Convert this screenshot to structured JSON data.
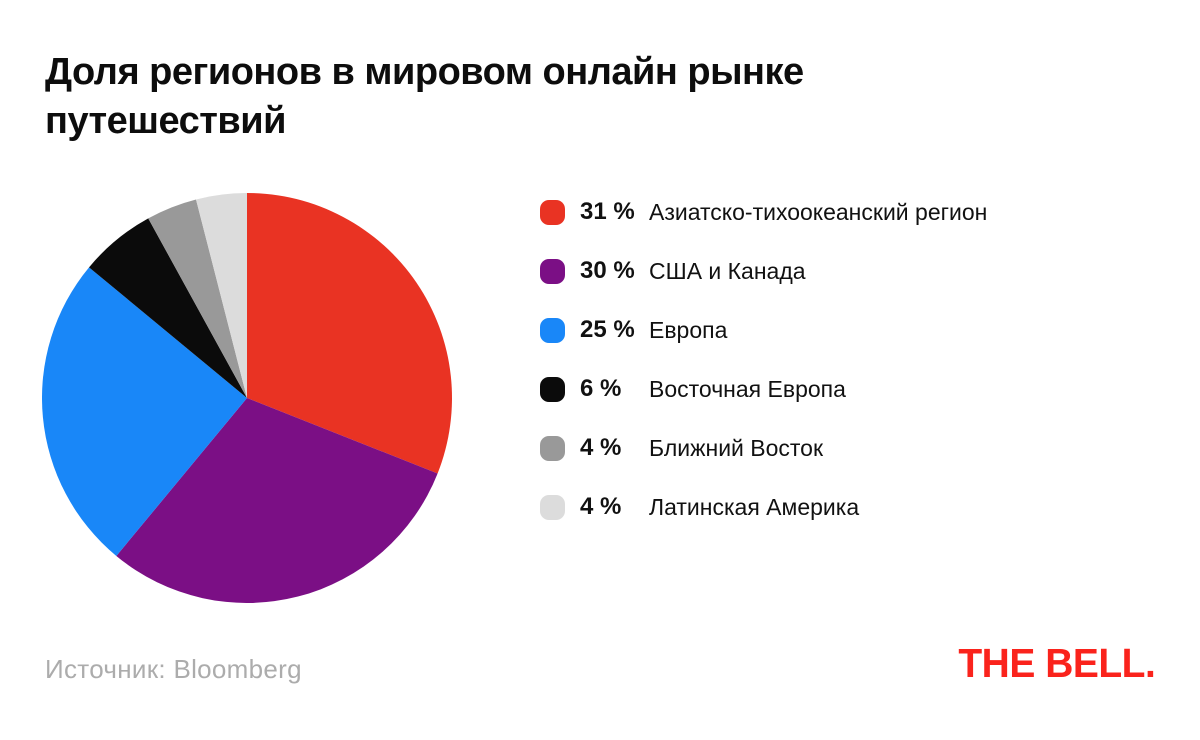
{
  "page": {
    "title": "Доля регионов в мировом онлайн рынке путешествий",
    "source": "Источник: Bloomberg",
    "logo_text": "THE BELL.",
    "logo_color": "#fa231c",
    "background_color": "#ffffff"
  },
  "chart_data": {
    "type": "pie",
    "title": "Доля регионов в мировом онлайн рынке путешествий",
    "categories": [
      "Азиатско-тихоокеанский регион",
      "США и Канада",
      "Европа",
      "Восточная Европа",
      "Ближний Восток",
      "Латинская Америка"
    ],
    "values": [
      31,
      30,
      25,
      6,
      4,
      4
    ],
    "unit": "%",
    "colors": [
      "#e93323",
      "#7b0f85",
      "#1987f8",
      "#0b0b0b",
      "#999999",
      "#dcdcdc"
    ],
    "start_angle_deg": -90,
    "direction": "clockwise",
    "legend_position": "right",
    "source": "Bloomberg"
  },
  "legend": {
    "items": [
      {
        "pct": "31 %",
        "label": "Азиатско-тихоокеанский регион"
      },
      {
        "pct": "30 %",
        "label": "США и Канада"
      },
      {
        "pct": "25 %",
        "label": "Европа"
      },
      {
        "pct": "6 %",
        "label": "Восточная Европа"
      },
      {
        "pct": "4 %",
        "label": "Ближний Восток"
      },
      {
        "pct": "4 %",
        "label": "Латинская Америка"
      }
    ]
  }
}
